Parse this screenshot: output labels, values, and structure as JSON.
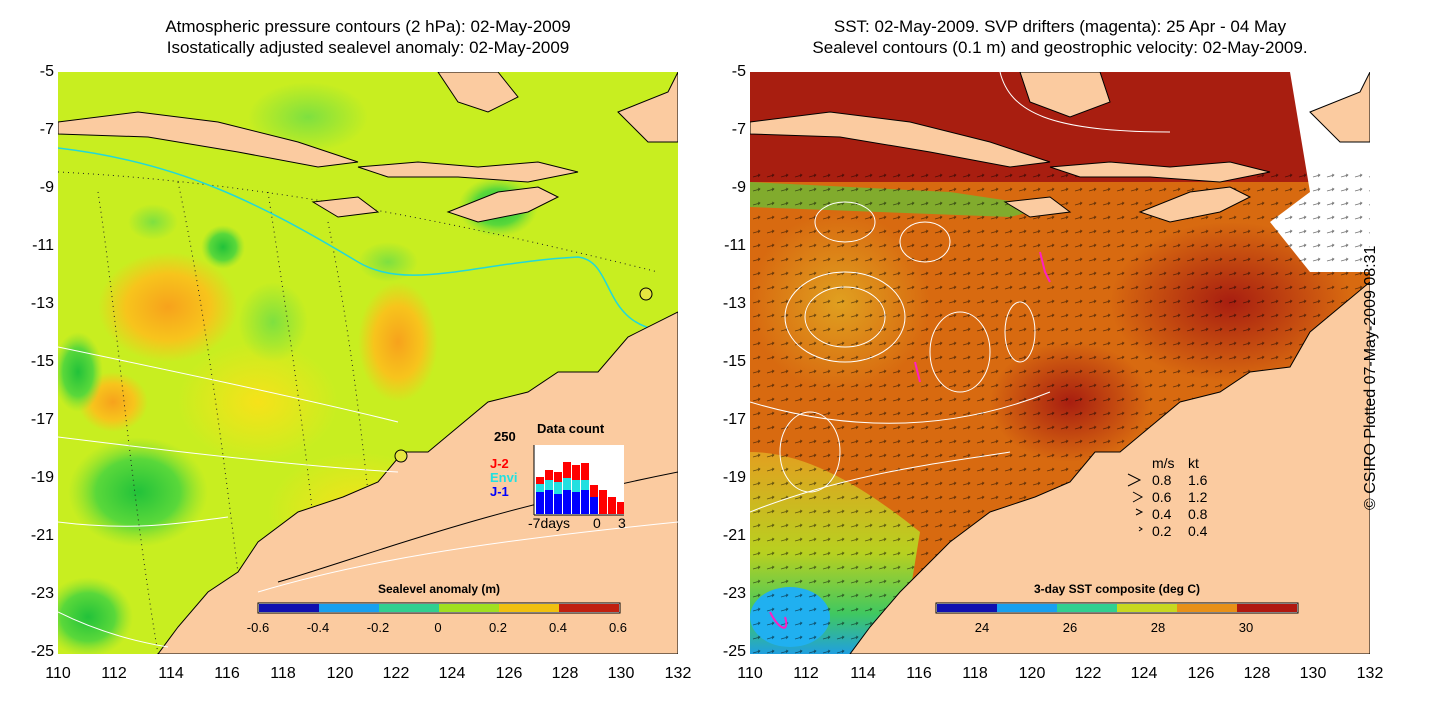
{
  "left_map": {
    "title_line1": "Atmospheric pressure contours (2 hPa): 02-May-2009",
    "title_line2": "Isostatically adjusted sealevel anomaly: 02-May-2009",
    "colorbar": {
      "title": "Sealevel anomaly (m)",
      "ticks": [
        "-0.6",
        "-0.4",
        "-0.2",
        "0",
        "0.2",
        "0.4",
        "0.6"
      ]
    },
    "data_count": {
      "title": "Data count",
      "ymax_label": "250",
      "x_labels": [
        "-7days",
        "0",
        "3"
      ],
      "satellites": [
        {
          "label": "J-2",
          "color": "#ff0000"
        },
        {
          "label": "Envi",
          "color": "#22e0e0"
        },
        {
          "label": "J-1",
          "color": "#0000ff"
        }
      ]
    }
  },
  "right_map": {
    "title_line1": "SST: 02-May-2009. SVP drifters (magenta): 25 Apr - 04 May",
    "title_line2": "Sealevel contours (0.1 m) and geostrophic velocity: 02-May-2009.",
    "colorbar": {
      "title": "3-day SST composite (deg C)",
      "ticks": [
        "24",
        "26",
        "28",
        "30"
      ]
    },
    "velocity_legend": {
      "header_ms": "m/s",
      "header_kt": "kt",
      "rows": [
        {
          "ms": "0.8",
          "kt": "1.6"
        },
        {
          "ms": "0.6",
          "kt": "1.2"
        },
        {
          "ms": "0.4",
          "kt": "0.8"
        },
        {
          "ms": "0.2",
          "kt": "0.4"
        }
      ]
    }
  },
  "axes": {
    "y_labels": [
      "-5",
      "-7",
      "-9",
      "-11",
      "-13",
      "-15",
      "-17",
      "-19",
      "-21",
      "-23",
      "-25"
    ],
    "x_labels": [
      "110",
      "112",
      "114",
      "116",
      "118",
      "120",
      "122",
      "124",
      "126",
      "128",
      "130",
      "132"
    ]
  },
  "copyright": "© CSIRO Plotted 07-May-2009 08:31",
  "colors": {
    "land": "#fbcba0",
    "sla_base": "#c8ee20",
    "sst_base": "#d86a10",
    "sst_warm": "#a81e10"
  }
}
